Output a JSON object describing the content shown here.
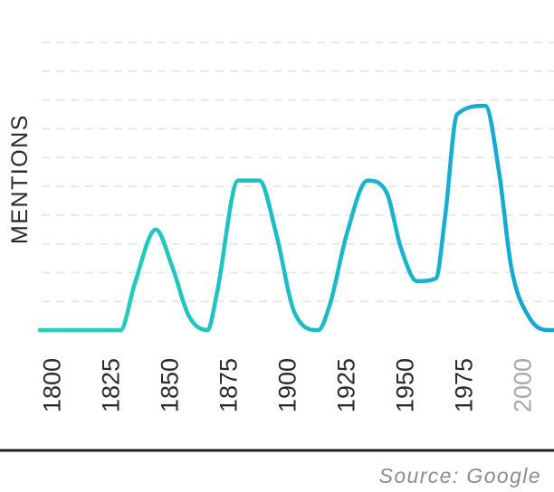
{
  "chart_data": {
    "type": "line",
    "title": "",
    "xlabel": "",
    "ylabel": "MENTIONS",
    "x_ticks": [
      "1800",
      "1825",
      "1850",
      "1875",
      "1900",
      "1925",
      "1950",
      "1975",
      "2000"
    ],
    "muted_ticks": [
      "2000"
    ],
    "xlim": [
      1800,
      2018
    ],
    "ylim": [
      0,
      10
    ],
    "grid": true,
    "line_colors": [
      "#22d3b8",
      "#14a6d4"
    ],
    "series": [
      {
        "x": [
          1800,
          1829,
          1835,
          1844,
          1851,
          1858,
          1866,
          1870,
          1879,
          1888,
          1895,
          1903,
          1913,
          1918,
          1925,
          1934,
          1942,
          1948,
          1955,
          1963,
          1967,
          1972,
          1984,
          1990,
          1995,
          2003,
          2011,
          2015
        ],
        "y": [
          0,
          0,
          1.6,
          3.5,
          2.2,
          0.5,
          0,
          1.3,
          5.2,
          5.2,
          3.4,
          0.6,
          0,
          0.9,
          3.3,
          5.2,
          4.8,
          2.9,
          1.7,
          1.8,
          4,
          7.5,
          7.8,
          5.4,
          2.2,
          0.4,
          0,
          0
        ]
      }
    ]
  },
  "source": "Source: Google"
}
